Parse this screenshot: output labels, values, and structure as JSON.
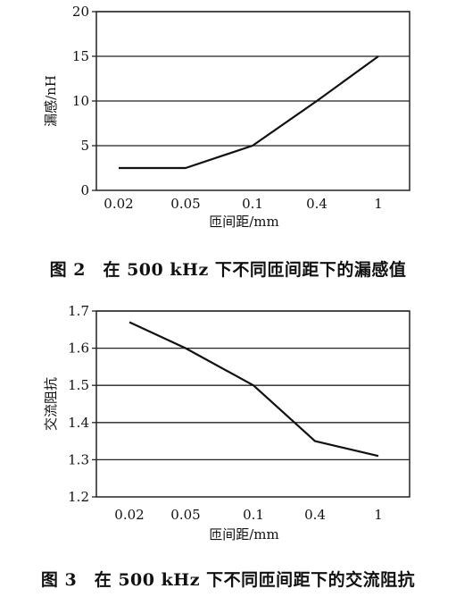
{
  "chart_data": [
    {
      "type": "line",
      "categories": [
        "0.02",
        "0.05",
        "0.1",
        "0.4",
        "1"
      ],
      "values": [
        2.5,
        2.5,
        5,
        10,
        15
      ],
      "xlabel": "匝间距/mm",
      "ylabel": "漏感/nH",
      "ylim": [
        0,
        20
      ],
      "yticks": [
        "0",
        "5",
        "10",
        "15",
        "20"
      ],
      "grid": true,
      "caption": "图 2　在 500 kHz 下不同匝间距下的漏感值"
    },
    {
      "type": "line",
      "categories": [
        "0.02",
        "0.05",
        "0.1",
        "0.4",
        "1"
      ],
      "values": [
        1.67,
        1.6,
        1.5,
        1.35,
        1.31
      ],
      "xlabel": "匝间距/mm",
      "ylabel": "交流阻抗",
      "ylim": [
        1.2,
        1.7
      ],
      "yticks": [
        "1.2",
        "1.3",
        "1.4",
        "1.5",
        "1.6",
        "1.7"
      ],
      "grid": true,
      "caption": "图 3　在 500 kHz 下不同匝间距下的交流阻抗"
    }
  ]
}
